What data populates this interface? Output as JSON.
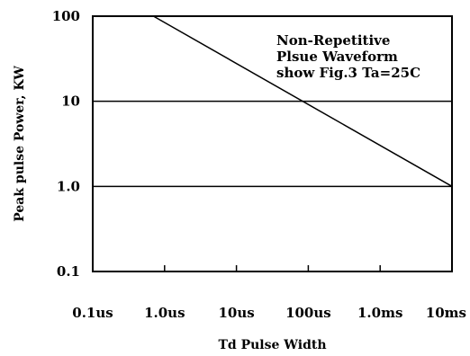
{
  "chart_data": {
    "type": "line",
    "title": "",
    "xlabel": "Td Pulse Width",
    "ylabel": "Peak pulse Power, KW",
    "x_scale": "log",
    "y_scale": "log",
    "xlim": [
      0.1,
      10000
    ],
    "ylim": [
      0.1,
      100
    ],
    "x_units": "us",
    "x_ticks": [
      0.1,
      1,
      10,
      100,
      1000,
      10000
    ],
    "x_tick_labels": [
      "0.1us",
      "1.0us",
      "10us",
      "100us",
      "1.0ms",
      "10ms"
    ],
    "y_ticks": [
      0.1,
      1,
      10,
      100
    ],
    "y_tick_labels": [
      "0.1",
      "1.0",
      "10",
      "100"
    ],
    "grid": {
      "horizontal": [
        1,
        10
      ],
      "vertical": false
    },
    "series": [
      {
        "x": [
          0.7,
          10000
        ],
        "y": [
          100,
          1
        ]
      }
    ],
    "annotation": {
      "lines": [
        "Non-Repetitive",
        "Plsue Waveform",
        "show Fig.3 Ta=25C"
      ],
      "placement": "top-right"
    }
  }
}
